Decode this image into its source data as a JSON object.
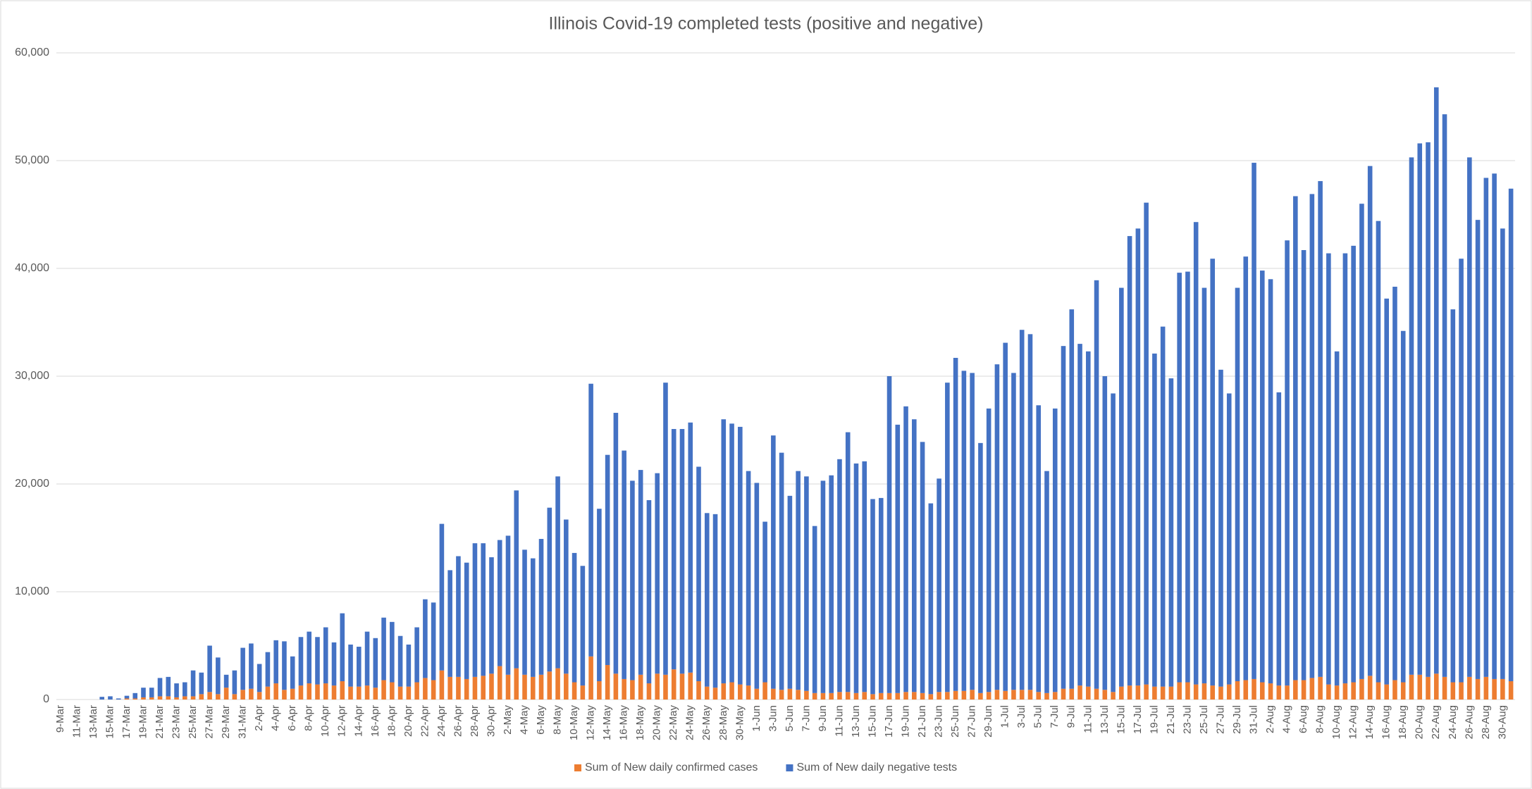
{
  "chart_data": {
    "type": "stacked_bar",
    "title": "Illinois Covid-19 completed tests (positive and negative)",
    "categories": [
      "9-Mar",
      null,
      "11-Mar",
      null,
      "13-Mar",
      null,
      "15-Mar",
      null,
      "17-Mar",
      null,
      "19-Mar",
      null,
      "21-Mar",
      null,
      "23-Mar",
      null,
      "25-Mar",
      null,
      "27-Mar",
      null,
      "29-Mar",
      null,
      "31-Mar",
      null,
      "2-Apr",
      null,
      "4-Apr",
      null,
      "6-Apr",
      null,
      "8-Apr",
      null,
      "10-Apr",
      null,
      "12-Apr",
      null,
      "14-Apr",
      null,
      "16-Apr",
      null,
      "18-Apr",
      null,
      "20-Apr",
      null,
      "22-Apr",
      null,
      "24-Apr",
      null,
      "26-Apr",
      null,
      "28-Apr",
      null,
      "30-Apr",
      null,
      "2-May",
      null,
      "4-May",
      null,
      "6-May",
      null,
      "8-May",
      null,
      "10-May",
      null,
      "12-May",
      null,
      "14-May",
      null,
      "16-May",
      null,
      "18-May",
      null,
      "20-May",
      null,
      "22-May",
      null,
      "24-May",
      null,
      "26-May",
      null,
      "28-May",
      null,
      "30-May",
      null,
      "1-Jun",
      null,
      "3-Jun",
      null,
      "5-Jun",
      null,
      "7-Jun",
      null,
      "9-Jun",
      null,
      "11-Jun",
      null,
      "13-Jun",
      null,
      "15-Jun",
      null,
      "17-Jun",
      null,
      "19-Jun",
      null,
      "21-Jun",
      null,
      "23-Jun",
      null,
      "25-Jun",
      null,
      "27-Jun",
      null,
      "29-Jun",
      null,
      "1-Jul",
      null,
      "3-Jul",
      null,
      "5-Jul",
      null,
      "7-Jul",
      null,
      "9-Jul",
      null,
      "11-Jul",
      null,
      "13-Jul",
      null,
      "15-Jul",
      null,
      "17-Jul",
      null,
      "19-Jul",
      null,
      "21-Jul",
      null,
      "23-Jul",
      null,
      "25-Jul",
      null,
      "27-Jul",
      null,
      "29-Jul",
      null,
      "31-Jul",
      null,
      "2-Aug",
      null,
      "4-Aug",
      null,
      "6-Aug",
      null,
      "8-Aug",
      null,
      "10-Aug",
      null,
      "12-Aug",
      null,
      "14-Aug",
      null,
      "16-Aug",
      null,
      "18-Aug",
      null,
      "20-Aug",
      null,
      "22-Aug",
      null,
      "24-Aug",
      null,
      "26-Aug",
      null,
      "28-Aug",
      null,
      "30-Aug",
      null
    ],
    "series": [
      {
        "name": "Sum of New daily confirmed cases",
        "color": "#ed7d31",
        "values": [
          0,
          0,
          0,
          0,
          0,
          0,
          0,
          0,
          100,
          100,
          200,
          200,
          300,
          300,
          200,
          300,
          300,
          500,
          700,
          500,
          1100,
          500,
          900,
          1000,
          700,
          1200,
          1500,
          900,
          1000,
          1300,
          1500,
          1400,
          1500,
          1300,
          1700,
          1200,
          1200,
          1300,
          1100,
          1800,
          1600,
          1200,
          1200,
          1600,
          2000,
          1800,
          2700,
          2100,
          2100,
          1900,
          2100,
          2200,
          2400,
          3100,
          2300,
          2900,
          2300,
          2100,
          2300,
          2600,
          2900,
          2400,
          1600,
          1300,
          4000,
          1700,
          3200,
          2400,
          1900,
          1800,
          2300,
          1500,
          2400,
          2300,
          2800,
          2400,
          2500,
          1700,
          1200,
          1100,
          1500,
          1600,
          1400,
          1300,
          1000,
          1600,
          1000,
          900,
          1000,
          900,
          800,
          600,
          600,
          600,
          700,
          700,
          600,
          700,
          500,
          600,
          600,
          600,
          700,
          700,
          600,
          500,
          700,
          700,
          800,
          800,
          900,
          600,
          700,
          900,
          800,
          900,
          900,
          900,
          700,
          600,
          700,
          1000,
          1000,
          1300,
          1200,
          1000,
          900,
          700,
          1200,
          1300,
          1300,
          1400,
          1200,
          1200,
          1200,
          1600,
          1600,
          1400,
          1500,
          1300,
          1200,
          1400,
          1700,
          1800,
          1900,
          1600,
          1500,
          1300,
          1300,
          1800,
          1800,
          2000,
          2100,
          1400,
          1300,
          1500,
          1600,
          1900,
          2200,
          1600,
          1400,
          1800,
          1600,
          2300,
          2300,
          2100,
          2400,
          2100,
          1600,
          1600,
          2100,
          1900,
          2100,
          1900,
          1900,
          1700
        ]
      },
      {
        "name": "Sum of New daily negative tests",
        "color": "#4472c4",
        "values": [
          0,
          0,
          0,
          0,
          0,
          250,
          300,
          100,
          250,
          500,
          900,
          900,
          1700,
          1800,
          1300,
          1300,
          2400,
          2000,
          4300,
          3400,
          1200,
          2200,
          3900,
          4200,
          2600,
          3200,
          4000,
          4500,
          3000,
          4500,
          4800,
          4400,
          5200,
          4000,
          6300,
          3900,
          3700,
          5000,
          4600,
          5800,
          5600,
          4700,
          3900,
          5100,
          7300,
          7200,
          13600,
          9900,
          11200,
          10800,
          12400,
          12300,
          10800,
          11700,
          12900,
          16500,
          11600,
          11000,
          12600,
          15200,
          17800,
          14300,
          12000,
          11100,
          25300,
          16000,
          19500,
          24200,
          21200,
          18500,
          19000,
          17000,
          18600,
          27100,
          22300,
          22700,
          23200,
          19900,
          16100,
          16100,
          24500,
          24000,
          23900,
          19900,
          19100,
          14900,
          23500,
          22000,
          17900,
          20300,
          19900,
          15500,
          19700,
          20200,
          21600,
          24100,
          21300,
          21400,
          18100,
          18100,
          29400,
          24900,
          26500,
          25300,
          23300,
          17700,
          19800,
          28700,
          30900,
          29700,
          29400,
          23200,
          26300,
          30200,
          32300,
          29400,
          33400,
          33000,
          26600,
          20600,
          26300,
          31800,
          35200,
          31700,
          31100,
          37900,
          29100,
          27700,
          37000,
          41700,
          42400,
          44700,
          30900,
          33400,
          28600,
          38000,
          38100,
          42900,
          36700,
          39600,
          29400,
          27000,
          36500,
          39300,
          47900,
          38200,
          37500,
          27200,
          41300,
          44900,
          39900,
          44900,
          46000,
          40000,
          31000,
          39900,
          40500,
          44100,
          47300,
          42800,
          35800,
          36500,
          32600,
          48000,
          49300,
          49600,
          54400,
          52200,
          34600,
          39300,
          48200,
          42600,
          46300,
          46900,
          41800,
          45700
        ]
      }
    ],
    "ylim": [
      0,
      60000
    ],
    "yticks": [
      0,
      {
        "value": 10000,
        "label": "10,000"
      },
      {
        "value": 20000,
        "label": "20,000"
      },
      {
        "value": 30000,
        "label": "30,000"
      },
      {
        "value": 40000,
        "label": "40,000"
      },
      {
        "value": 50000,
        "label": "50,000"
      },
      {
        "value": 60000,
        "label": "60,000"
      }
    ],
    "grid": true,
    "legend": "bottom"
  }
}
